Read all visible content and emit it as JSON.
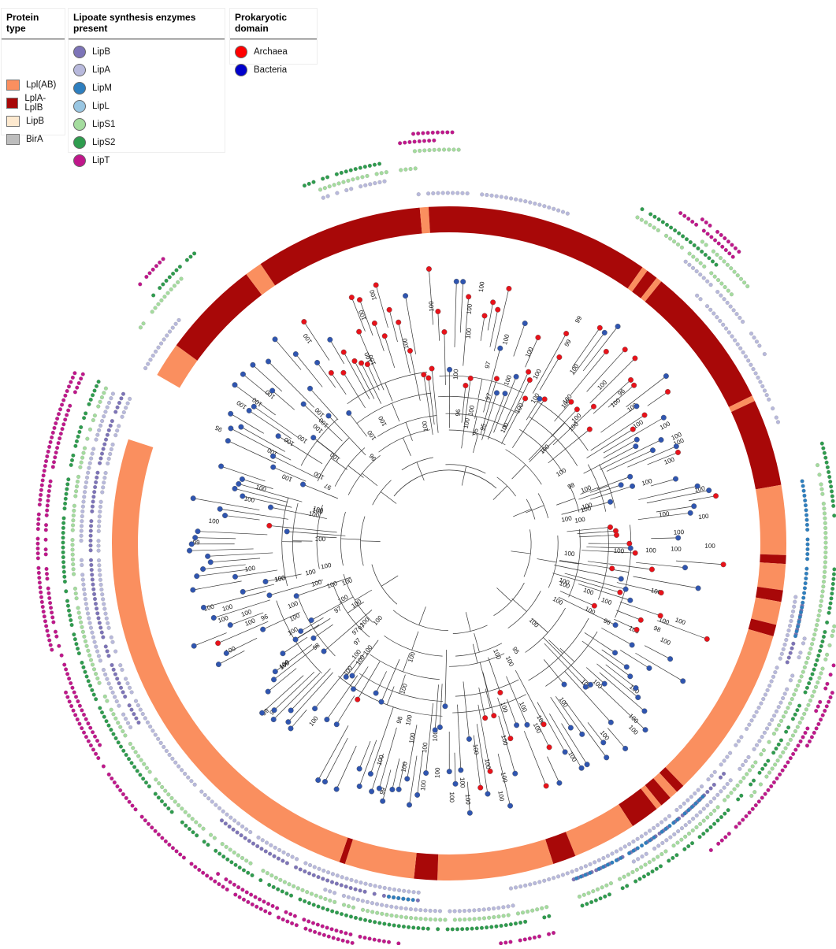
{
  "legends": {
    "protein_type": {
      "title": "Protein type",
      "items": [
        {
          "label": "Lpl(AB)",
          "color": "#fa8f5f"
        },
        {
          "label": "LplA-LplB",
          "color": "#a80808"
        },
        {
          "label": "LipB",
          "color": "#fde9cf"
        },
        {
          "label": "BirA",
          "color": "#bdbdbd"
        }
      ]
    },
    "enzymes": {
      "title": "Lipoate synthesis enzymes present",
      "items": [
        {
          "label": "LipB",
          "color": "#7d74b8"
        },
        {
          "label": "LipA",
          "color": "#b8b9dc"
        },
        {
          "label": "LipM",
          "color": "#2e7fbf"
        },
        {
          "label": "LipL",
          "color": "#99c6e2"
        },
        {
          "label": "LipS1",
          "color": "#a4dc9e"
        },
        {
          "label": "LipS2",
          "color": "#2e9c4e"
        },
        {
          "label": "LipT",
          "color": "#c0178b"
        }
      ]
    },
    "domain": {
      "title": "Prokaryotic domain",
      "items": [
        {
          "label": "Archaea",
          "color": "#ff0000"
        },
        {
          "label": "Bacteria",
          "color": "#0000cc"
        }
      ]
    }
  },
  "tree": {
    "bootstrap_label": "100",
    "other_labels": [
      "99",
      "98",
      "97",
      "95",
      "96"
    ]
  },
  "colors": {
    "tip_archaea": "#e8121a",
    "tip_bacteria": "#2f55b0",
    "branch": "#333333"
  }
}
